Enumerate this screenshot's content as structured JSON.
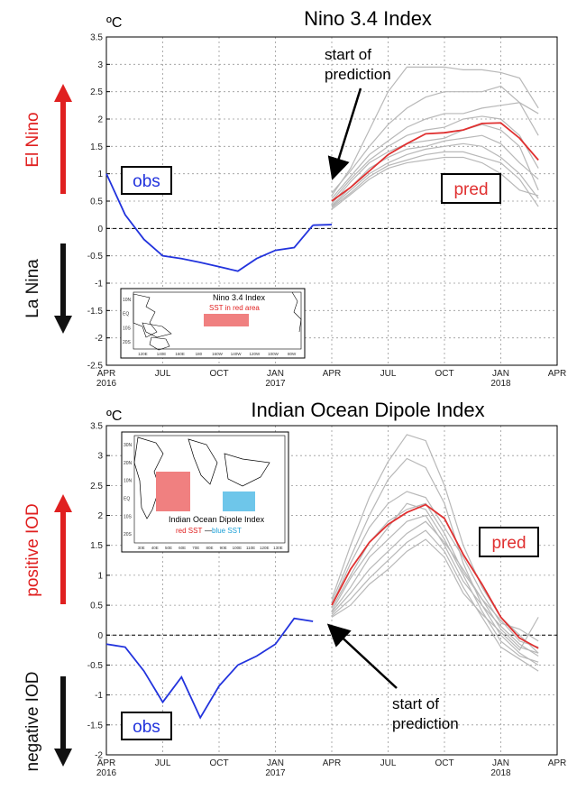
{
  "chart_data": [
    {
      "type": "line",
      "title": "Nino 3.4 Index",
      "unit": "ºC",
      "ylim": [
        -2.5,
        3.5
      ],
      "y_ticks": [
        "3.5",
        "3",
        "2.5",
        "2",
        "1.5",
        "1",
        "0.5",
        "0",
        "-0.5",
        "-1",
        "-1.5",
        "-2",
        "-2.5"
      ],
      "x_ticks": [
        "APR\n2016",
        "JUL",
        "OCT",
        "JAN\n2017",
        "APR",
        "JUL",
        "OCT",
        "JAN\n2018",
        "APR"
      ],
      "x_tick_labels": [
        "APR",
        "JUL",
        "OCT",
        "JAN",
        "APR",
        "JUL",
        "OCT",
        "JAN",
        "APR"
      ],
      "x_year_labels": [
        {
          "at": 0,
          "text": "2016"
        },
        {
          "at": 9,
          "text": "2017"
        },
        {
          "at": 21,
          "text": "2018"
        }
      ],
      "xlim": [
        0,
        24
      ],
      "grid": true,
      "obs": {
        "label": "obs",
        "color": "#2233dd",
        "x": [
          0,
          1,
          2,
          3,
          4,
          5,
          6,
          7,
          8,
          9,
          10,
          11
        ],
        "y": [
          1.0,
          0.25,
          -0.2,
          -0.5,
          -0.55,
          -0.62,
          -0.7,
          -0.78,
          -0.55,
          -0.4,
          -0.35,
          0.06
        ]
      },
      "obs_tail": {
        "x": [
          11,
          12
        ],
        "y": [
          0.06,
          0.07
        ]
      },
      "pred_mean": {
        "label": "pred",
        "color": "#e03030",
        "x": [
          12,
          13,
          14,
          15,
          16,
          17,
          18,
          19,
          20,
          21,
          22,
          23
        ],
        "y": [
          0.5,
          0.75,
          1.05,
          1.35,
          1.55,
          1.73,
          1.75,
          1.8,
          1.92,
          1.93,
          1.65,
          1.25
        ]
      },
      "ensemble": [
        {
          "x": [
            12,
            13,
            14,
            15,
            16,
            17,
            18,
            19,
            20,
            21,
            22,
            23
          ],
          "y": [
            0.6,
            1.1,
            1.8,
            2.5,
            2.95,
            2.95,
            2.95,
            2.9,
            2.9,
            2.85,
            2.75,
            2.2
          ]
        },
        {
          "x": [
            12,
            13,
            14,
            15,
            16,
            17,
            18,
            19,
            20,
            21,
            22,
            23
          ],
          "y": [
            0.65,
            1.05,
            1.5,
            1.9,
            2.2,
            2.4,
            2.5,
            2.5,
            2.5,
            2.6,
            2.3,
            1.7
          ]
        },
        {
          "x": [
            12,
            13,
            14,
            15,
            16,
            17,
            18,
            19,
            20,
            21,
            22,
            23
          ],
          "y": [
            0.55,
            0.95,
            1.35,
            1.6,
            1.85,
            2.0,
            2.1,
            2.1,
            2.2,
            2.25,
            2.3,
            2.1
          ]
        },
        {
          "x": [
            12,
            13,
            14,
            15,
            16,
            17,
            18,
            19,
            20,
            21,
            22,
            23
          ],
          "y": [
            0.5,
            0.9,
            1.25,
            1.5,
            1.7,
            1.8,
            1.85,
            2.0,
            2.05,
            2.0,
            1.7,
            1.1
          ]
        },
        {
          "x": [
            12,
            13,
            14,
            15,
            16,
            17,
            18,
            19,
            20,
            21,
            22,
            23
          ],
          "y": [
            0.45,
            0.85,
            1.2,
            1.4,
            1.55,
            1.6,
            1.65,
            1.8,
            1.9,
            1.8,
            1.5,
            0.7
          ]
        },
        {
          "x": [
            12,
            13,
            14,
            15,
            16,
            17,
            18,
            19,
            20,
            21,
            22,
            23
          ],
          "y": [
            0.42,
            0.75,
            1.1,
            1.3,
            1.45,
            1.5,
            1.6,
            1.65,
            1.7,
            1.55,
            1.2,
            0.9
          ]
        },
        {
          "x": [
            12,
            13,
            14,
            15,
            16,
            17,
            18,
            19,
            20,
            21,
            22,
            23
          ],
          "y": [
            0.4,
            0.7,
            1.0,
            1.2,
            1.35,
            1.45,
            1.5,
            1.55,
            1.5,
            1.3,
            1.0,
            0.55
          ]
        },
        {
          "x": [
            12,
            13,
            14,
            15,
            16,
            17,
            18,
            19,
            20,
            21,
            22,
            23
          ],
          "y": [
            0.38,
            0.65,
            0.95,
            1.15,
            1.25,
            1.35,
            1.4,
            1.4,
            1.3,
            1.2,
            0.9,
            0.4
          ]
        },
        {
          "x": [
            12,
            13,
            14,
            15,
            16,
            17,
            18,
            19,
            20,
            21,
            22,
            23
          ],
          "y": [
            0.35,
            0.62,
            0.9,
            1.1,
            1.2,
            1.25,
            1.3,
            1.3,
            1.2,
            1.0,
            0.7,
            0.6
          ]
        }
      ],
      "annotation": "start of\nprediction",
      "annotation_lines": [
        "start of",
        "prediction"
      ],
      "side_top": {
        "label": "El Nino",
        "color": "#e02020"
      },
      "side_bottom": {
        "label": "La Nina",
        "color": "#111111"
      },
      "inset": {
        "title": "Nino 3.4 Index",
        "subtitle": "SST in red area",
        "subtitle_color": "#e02020",
        "box_color": "#f08080",
        "lat_labels": [
          "10N",
          "EQ",
          "10S",
          "20S"
        ],
        "lon_labels": [
          "120E",
          "140E",
          "160E",
          "180",
          "160W",
          "140W",
          "120W",
          "100W",
          "80W"
        ]
      }
    },
    {
      "type": "line",
      "title": "Indian Ocean Dipole Index",
      "unit": "ºC",
      "ylim": [
        -2,
        3.5
      ],
      "y_ticks": [
        "3.5",
        "3",
        "2.5",
        "2",
        "1.5",
        "1",
        "0.5",
        "0",
        "-0.5",
        "-1",
        "-1.5",
        "-2"
      ],
      "x_tick_labels": [
        "APR",
        "JUL",
        "OCT",
        "JAN",
        "APR",
        "JUL",
        "OCT",
        "JAN",
        "APR"
      ],
      "x_year_labels": [
        {
          "at": 0,
          "text": "2016"
        },
        {
          "at": 9,
          "text": "2017"
        },
        {
          "at": 21,
          "text": "2018"
        }
      ],
      "xlim": [
        0,
        24
      ],
      "grid": true,
      "obs": {
        "label": "obs",
        "color": "#2233dd",
        "x": [
          0,
          1,
          2,
          3,
          4,
          5,
          6,
          7,
          8,
          9,
          10,
          11
        ],
        "y": [
          -0.15,
          -0.2,
          -0.6,
          -1.12,
          -0.7,
          -1.38,
          -0.85,
          -0.5,
          -0.35,
          -0.15,
          0.28,
          0.23
        ]
      },
      "pred_mean": {
        "label": "pred",
        "color": "#e03030",
        "x": [
          12,
          13,
          14,
          15,
          16,
          17,
          18,
          19,
          20,
          21,
          22,
          23
        ],
        "y": [
          0.5,
          1.1,
          1.55,
          1.85,
          2.05,
          2.18,
          1.95,
          1.35,
          0.85,
          0.3,
          -0.05,
          -0.22
        ]
      },
      "ensemble": [
        {
          "x": [
            12,
            13,
            14,
            15,
            16,
            17,
            18,
            19,
            20,
            21,
            22,
            23
          ],
          "y": [
            0.6,
            1.5,
            2.3,
            2.9,
            3.35,
            3.25,
            2.5,
            1.5,
            0.8,
            0.3,
            0.0,
            -0.3
          ]
        },
        {
          "x": [
            12,
            13,
            14,
            15,
            16,
            17,
            18,
            19,
            20,
            21,
            22,
            23
          ],
          "y": [
            0.55,
            1.3,
            2.0,
            2.6,
            2.95,
            2.8,
            2.2,
            1.2,
            0.5,
            0.0,
            -0.3,
            -0.5
          ]
        },
        {
          "x": [
            12,
            13,
            14,
            15,
            16,
            17,
            18,
            19,
            20,
            21,
            22,
            23
          ],
          "y": [
            0.5,
            1.2,
            1.8,
            2.2,
            2.4,
            2.3,
            1.8,
            1.3,
            0.7,
            0.2,
            0.1,
            -0.1
          ]
        },
        {
          "x": [
            12,
            13,
            14,
            15,
            16,
            17,
            18,
            19,
            20,
            21,
            22,
            23
          ],
          "y": [
            0.45,
            1.0,
            1.55,
            1.9,
            2.1,
            2.2,
            1.7,
            1.05,
            0.6,
            0.25,
            -0.1,
            -0.2
          ]
        },
        {
          "x": [
            12,
            13,
            14,
            15,
            16,
            17,
            18,
            19,
            20,
            21,
            22,
            23
          ],
          "y": [
            0.4,
            0.95,
            1.4,
            1.8,
            2.2,
            2.1,
            1.6,
            1.0,
            0.4,
            -0.1,
            -0.35,
            -0.45
          ]
        },
        {
          "x": [
            12,
            13,
            14,
            15,
            16,
            17,
            18,
            19,
            20,
            21,
            22,
            23
          ],
          "y": [
            0.38,
            0.8,
            1.3,
            1.6,
            1.9,
            2.0,
            1.5,
            0.9,
            0.5,
            0.15,
            -0.15,
            -0.35
          ]
        },
        {
          "x": [
            12,
            13,
            14,
            15,
            16,
            17,
            18,
            19,
            20,
            21,
            22,
            23
          ],
          "y": [
            0.35,
            0.7,
            1.1,
            1.4,
            1.7,
            1.9,
            1.55,
            1.1,
            0.6,
            0.1,
            -0.2,
            -0.3
          ]
        },
        {
          "x": [
            12,
            13,
            14,
            15,
            16,
            17,
            18,
            19,
            20,
            21,
            22,
            23
          ],
          "y": [
            0.32,
            0.6,
            0.95,
            1.25,
            1.55,
            1.75,
            1.4,
            0.8,
            0.3,
            -0.2,
            -0.4,
            -0.6
          ]
        },
        {
          "x": [
            12,
            13,
            14,
            15,
            16,
            17,
            18,
            19,
            20,
            21,
            22,
            23
          ],
          "y": [
            0.3,
            0.5,
            0.85,
            1.1,
            1.4,
            1.6,
            1.3,
            0.7,
            0.35,
            0.05,
            -0.25,
            0.3
          ]
        }
      ],
      "annotation_lines": [
        "start of",
        "prediction"
      ],
      "side_top": {
        "label": "positive IOD",
        "color": "#e02020"
      },
      "side_bottom": {
        "label": "negative IOD",
        "color": "#111111"
      },
      "inset": {
        "title": "Indian Ocean Dipole Index",
        "red_label": "red SST",
        "dash": "—",
        "blue_label": "blue SST",
        "red_color": "#e02020",
        "blue_color": "#1a9fd6",
        "box_red": "#f08080",
        "box_blue": "#6ec6ea",
        "lat_labels": [
          "30N",
          "20N",
          "10N",
          "EQ",
          "10S",
          "20S"
        ],
        "lon_labels": [
          "30E",
          "40E",
          "50E",
          "60E",
          "70E",
          "80E",
          "90E",
          "100E",
          "110E",
          "120E",
          "130E"
        ]
      }
    }
  ]
}
